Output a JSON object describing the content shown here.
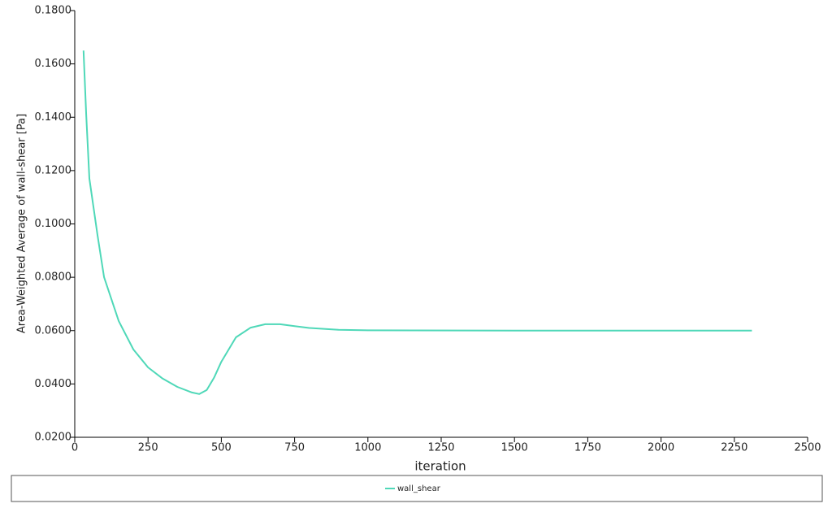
{
  "chart_data": {
    "type": "line",
    "xlabel": "iteration",
    "ylabel": "Area-Weighted Average of wall-shear [Pa]",
    "x": [
      30,
      39,
      50,
      78,
      100,
      150,
      200,
      250,
      300,
      350,
      400,
      425,
      450,
      475,
      500,
      550,
      600,
      650,
      700,
      750,
      800,
      900,
      1000,
      1500,
      2000,
      2310
    ],
    "series": [
      {
        "name": "wall_shear",
        "color": "#4fd8b8",
        "values": [
          0.165,
          0.141,
          0.117,
          0.0956,
          0.08,
          0.0636,
          0.0529,
          0.0462,
          0.042,
          0.0389,
          0.0368,
          0.0362,
          0.0377,
          0.0423,
          0.0483,
          0.0575,
          0.0611,
          0.0624,
          0.0624,
          0.0617,
          0.061,
          0.0603,
          0.0601,
          0.06,
          0.06,
          0.06
        ]
      }
    ],
    "xlim": [
      0,
      2500
    ],
    "xticks": [
      0,
      250,
      500,
      750,
      1000,
      1250,
      1500,
      1750,
      2000,
      2250,
      2500
    ],
    "ylim": [
      0.02,
      0.18
    ],
    "yticks": [
      {
        "value": 0.02,
        "label": "0.0200"
      },
      {
        "value": 0.04,
        "label": "0.0400"
      },
      {
        "value": 0.06,
        "label": "0.0600"
      },
      {
        "value": 0.08,
        "label": "0.0800"
      },
      {
        "value": 0.1,
        "label": "0.1000"
      },
      {
        "value": 0.12,
        "label": "0.1200"
      },
      {
        "value": 0.14,
        "label": "0.1400"
      },
      {
        "value": 0.16,
        "label": "0.1600"
      },
      {
        "value": 0.18,
        "label": "0.1800"
      }
    ],
    "legend": "bottom"
  }
}
